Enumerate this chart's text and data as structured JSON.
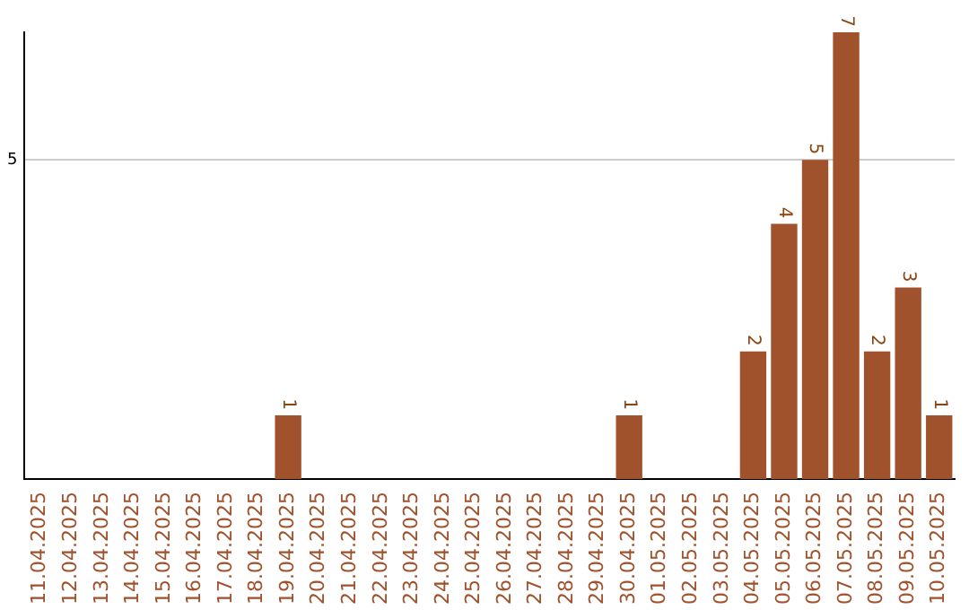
{
  "chart_data": {
    "type": "bar",
    "categories": [
      "11.04.2025",
      "12.04.2025",
      "13.04.2025",
      "14.04.2025",
      "15.04.2025",
      "16.04.2025",
      "17.04.2025",
      "18.04.2025",
      "19.04.2025",
      "20.04.2025",
      "21.04.2025",
      "22.04.2025",
      "23.04.2025",
      "24.04.2025",
      "25.04.2025",
      "26.04.2025",
      "27.04.2025",
      "28.04.2025",
      "29.04.2025",
      "30.04.2025",
      "01.05.2025",
      "02.05.2025",
      "03.05.2025",
      "04.05.2025",
      "05.05.2025",
      "06.05.2025",
      "07.05.2025",
      "08.05.2025",
      "09.05.2025",
      "10.05.2025"
    ],
    "values": [
      0,
      0,
      0,
      0,
      0,
      0,
      0,
      0,
      1,
      0,
      0,
      0,
      0,
      0,
      0,
      0,
      0,
      0,
      0,
      1,
      0,
      0,
      0,
      2,
      4,
      5,
      7,
      2,
      3,
      1
    ],
    "value_labels": [
      null,
      null,
      null,
      null,
      null,
      null,
      null,
      null,
      "1",
      null,
      null,
      null,
      null,
      null,
      null,
      null,
      null,
      null,
      null,
      "1",
      null,
      null,
      null,
      "2",
      "4",
      "5",
      "7",
      "2",
      "3",
      "1"
    ],
    "color": "#a0522d",
    "ylim": [
      0,
      7
    ],
    "yticks": [
      5
    ],
    "grid": "y",
    "legend": false
  }
}
